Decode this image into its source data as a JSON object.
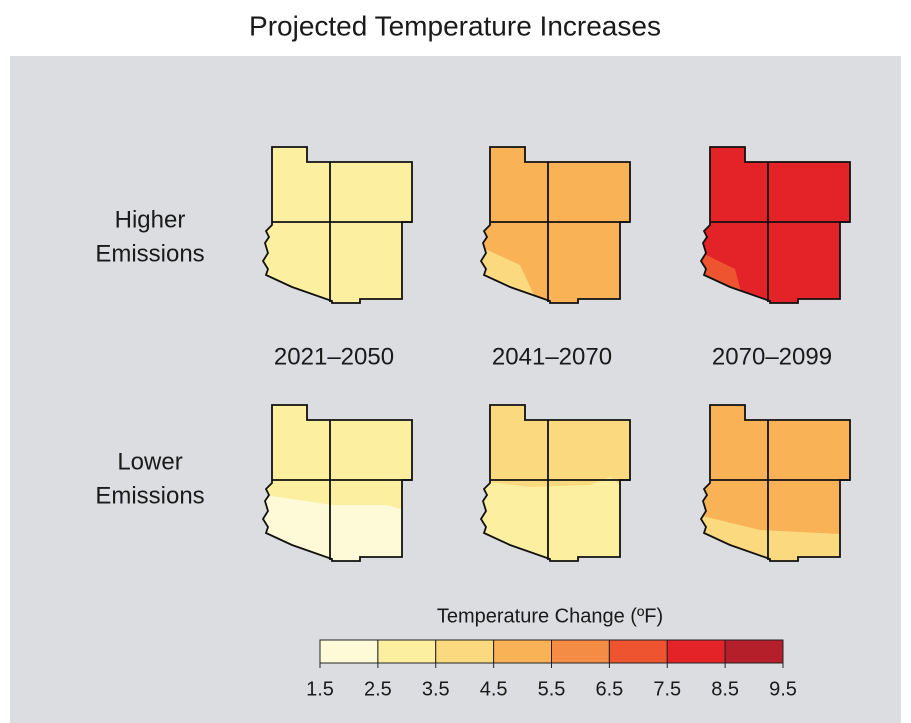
{
  "title": "Projected Temperature Increases",
  "rows": [
    [
      "Higher",
      "Emissions"
    ],
    [
      "Lower",
      "Emissions"
    ]
  ],
  "periods": [
    "2021–2050",
    "2041–2070",
    "2070–2099"
  ],
  "legend": {
    "title": "Temperature Change (ºF)",
    "ticks": [
      1.5,
      2.5,
      3.5,
      4.5,
      5.5,
      6.5,
      7.5,
      8.5,
      9.5
    ],
    "colors": [
      "#fef9d7",
      "#fcf0a0",
      "#fbd97f",
      "#f9b255",
      "#f48c45",
      "#ef5430",
      "#e42329",
      "#b41f2a"
    ]
  }
}
